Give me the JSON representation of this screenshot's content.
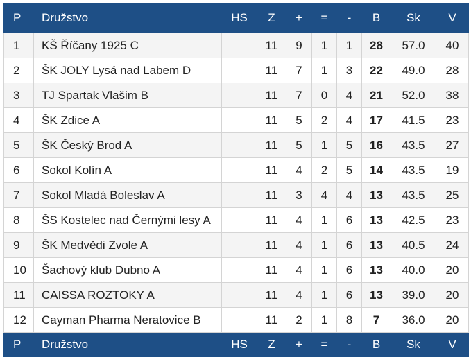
{
  "columns": {
    "p": "P",
    "team": "Družstvo",
    "hs": "HS",
    "z": "Z",
    "w": "+",
    "d": "=",
    "l": "-",
    "b": "B",
    "sk": "Sk",
    "v": "V"
  },
  "rows": [
    {
      "p": "1",
      "team": "KŠ Říčany 1925 C",
      "hs": "",
      "z": "11",
      "w": "9",
      "d": "1",
      "l": "1",
      "b": "28",
      "sk": "57.0",
      "v": "40"
    },
    {
      "p": "2",
      "team": "ŠK JOLY Lysá nad Labem D",
      "hs": "",
      "z": "11",
      "w": "7",
      "d": "1",
      "l": "3",
      "b": "22",
      "sk": "49.0",
      "v": "28"
    },
    {
      "p": "3",
      "team": "TJ Spartak Vlašim B",
      "hs": "",
      "z": "11",
      "w": "7",
      "d": "0",
      "l": "4",
      "b": "21",
      "sk": "52.0",
      "v": "38"
    },
    {
      "p": "4",
      "team": "ŠK Zdice A",
      "hs": "",
      "z": "11",
      "w": "5",
      "d": "2",
      "l": "4",
      "b": "17",
      "sk": "41.5",
      "v": "23"
    },
    {
      "p": "5",
      "team": "ŠK Český Brod A",
      "hs": "",
      "z": "11",
      "w": "5",
      "d": "1",
      "l": "5",
      "b": "16",
      "sk": "43.5",
      "v": "27"
    },
    {
      "p": "6",
      "team": "Sokol Kolín A",
      "hs": "",
      "z": "11",
      "w": "4",
      "d": "2",
      "l": "5",
      "b": "14",
      "sk": "43.5",
      "v": "19"
    },
    {
      "p": "7",
      "team": "Sokol Mladá Boleslav A",
      "hs": "",
      "z": "11",
      "w": "3",
      "d": "4",
      "l": "4",
      "b": "13",
      "sk": "43.5",
      "v": "25"
    },
    {
      "p": "8",
      "team": "ŠS Kostelec nad Černými lesy A",
      "hs": "",
      "z": "11",
      "w": "4",
      "d": "1",
      "l": "6",
      "b": "13",
      "sk": "42.5",
      "v": "23"
    },
    {
      "p": "9",
      "team": "ŠK Medvědi Zvole A",
      "hs": "",
      "z": "11",
      "w": "4",
      "d": "1",
      "l": "6",
      "b": "13",
      "sk": "40.5",
      "v": "24"
    },
    {
      "p": "10",
      "team": "Šachový klub Dubno A",
      "hs": "",
      "z": "11",
      "w": "4",
      "d": "1",
      "l": "6",
      "b": "13",
      "sk": "40.0",
      "v": "20"
    },
    {
      "p": "11",
      "team": "CAISSA ROZTOKY A",
      "hs": "",
      "z": "11",
      "w": "4",
      "d": "1",
      "l": "6",
      "b": "13",
      "sk": "39.0",
      "v": "20"
    },
    {
      "p": "12",
      "team": "Cayman Pharma Neratovice B",
      "hs": "",
      "z": "11",
      "w": "2",
      "d": "1",
      "l": "8",
      "b": "7",
      "sk": "36.0",
      "v": "20"
    }
  ],
  "colors": {
    "header_bg": "#1e4f86",
    "header_text": "#ffffff",
    "row_alt_bg": "#f4f4f4",
    "border": "#d4d4d4"
  }
}
